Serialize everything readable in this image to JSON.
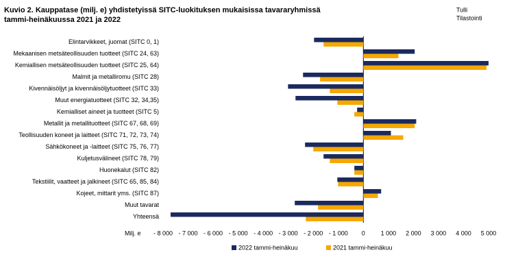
{
  "chart_data": {
    "type": "barh",
    "title": [
      "Kuvio  2. Kauppatase (milj. e) yhdistetyissä SITC-luokituksen mukaisissa tavararyhmissä",
      "tammi-heinäkuussa 2021 ja 2022"
    ],
    "source": [
      "Tulli",
      "Tilastointi"
    ],
    "x_label": "Milj. e",
    "categories": [
      "Elintarvikkeet, juomat (SITC 0, 1)",
      "Mekaanisen metsäteollisuuden tuotteet (SITC 24, 63)",
      "Kemiallisen metsäteollisuuden tuotteet (SITC 25, 64)",
      "Malmit ja metalliromu (SITC 28)",
      "Kivennäisöljyt ja kivennäisöljytuotteet (SITC 33)",
      "Muut energiatuotteet (SITC 32, 34,35)",
      "Kemialliset aineet ja tuotteet (SITC 5)",
      "Metallit ja metallituotteet (SITC 67, 68, 69)",
      "Teollisuuden koneet ja laitteet (SITC 71, 72, 73, 74)",
      "Sähkökoneet ja -laitteet (SITC 75, 76, 77)",
      "Kuljetusvälineet (SITC 78, 79)",
      "Huonekalut (SITC 82)",
      "Tekstiilit, vaatteet ja jalkineet (SITC 65, 85, 84)",
      "Kojeet, mittarit yms. (SITC 87)",
      "Muut tavarat",
      "Yhteensä"
    ],
    "series": [
      {
        "name": "2022 tammi-heinäkuu",
        "color": "#1b2a5e",
        "values": [
          -1970,
          2050,
          5000,
          -2410,
          -3010,
          -2710,
          -250,
          2110,
          1100,
          -2330,
          -1590,
          -360,
          -1040,
          710,
          -2740,
          -7700
        ]
      },
      {
        "name": "2021 tammi-heinäkuu",
        "color": "#f5a800",
        "values": [
          -1590,
          1400,
          4920,
          -1730,
          -1340,
          -1040,
          -360,
          2050,
          1590,
          -2000,
          -1340,
          -360,
          -1010,
          580,
          -1810,
          -2300
        ]
      }
    ],
    "xlim": [
      -8000,
      5000
    ],
    "xticks": [
      {
        "value": -8000,
        "label": "- 8 000"
      },
      {
        "value": -7000,
        "label": "- 7 000"
      },
      {
        "value": -6000,
        "label": "- 6 000"
      },
      {
        "value": -5000,
        "label": "- 5 000"
      },
      {
        "value": -4000,
        "label": "- 4 000"
      },
      {
        "value": -3000,
        "label": "- 3 000"
      },
      {
        "value": -2000,
        "label": "- 2 000"
      },
      {
        "value": -1000,
        "label": "- 1 000"
      },
      0,
      {
        "value": 1000,
        "label": "1 000"
      },
      {
        "value": 2000,
        "label": "2 000"
      },
      {
        "value": 3000,
        "label": "3 000"
      },
      {
        "value": 4000,
        "label": "4 000"
      },
      {
        "value": 5000,
        "label": "5 000"
      }
    ],
    "grid": false
  }
}
